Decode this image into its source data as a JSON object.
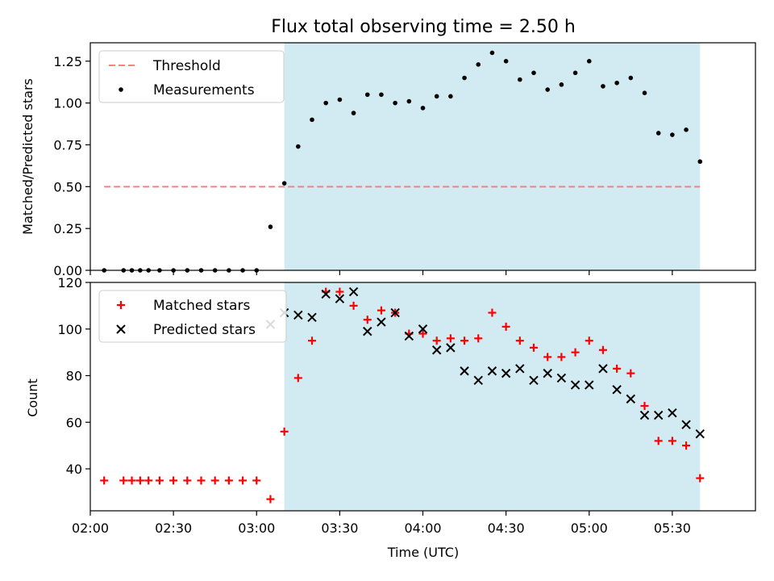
{
  "chart_data": [
    {
      "type": "scatter",
      "title": "Flux total observing time = 2.50 h",
      "xlabel": "",
      "ylabel": "Matched/Predicted stars",
      "xlim": [
        "02:00",
        "06:00"
      ],
      "ylim": [
        0,
        1.36
      ],
      "yticks": [
        "0.00",
        "0.25",
        "0.50",
        "0.75",
        "1.00",
        "1.25"
      ],
      "legend_placement": "upper-left",
      "shaded_region": {
        "start": "03:10",
        "end": "05:40",
        "color": "#add8e6"
      },
      "threshold": {
        "name": "Threshold",
        "value": 0.5,
        "start": "02:05",
        "end": "05:40",
        "color": "#ff7f7f"
      },
      "series": [
        {
          "name": "Measurements",
          "color": "#000000",
          "marker": "dot",
          "points": [
            [
              "02:05",
              0.0
            ],
            [
              "02:12",
              0.0
            ],
            [
              "02:15",
              0.0
            ],
            [
              "02:18",
              0.0
            ],
            [
              "02:21",
              0.0
            ],
            [
              "02:25",
              0.0
            ],
            [
              "02:30",
              0.0
            ],
            [
              "02:35",
              0.0
            ],
            [
              "02:40",
              0.0
            ],
            [
              "02:45",
              0.0
            ],
            [
              "02:50",
              0.0
            ],
            [
              "02:55",
              0.0
            ],
            [
              "03:00",
              0.0
            ],
            [
              "03:05",
              0.26
            ],
            [
              "03:10",
              0.52
            ],
            [
              "03:15",
              0.74
            ],
            [
              "03:20",
              0.9
            ],
            [
              "03:25",
              1.0
            ],
            [
              "03:30",
              1.02
            ],
            [
              "03:35",
              0.94
            ],
            [
              "03:40",
              1.05
            ],
            [
              "03:45",
              1.05
            ],
            [
              "03:50",
              1.0
            ],
            [
              "03:55",
              1.01
            ],
            [
              "04:00",
              0.97
            ],
            [
              "04:05",
              1.04
            ],
            [
              "04:10",
              1.04
            ],
            [
              "04:15",
              1.15
            ],
            [
              "04:20",
              1.23
            ],
            [
              "04:25",
              1.3
            ],
            [
              "04:30",
              1.25
            ],
            [
              "04:35",
              1.14
            ],
            [
              "04:40",
              1.18
            ],
            [
              "04:45",
              1.08
            ],
            [
              "04:50",
              1.11
            ],
            [
              "04:55",
              1.18
            ],
            [
              "05:00",
              1.25
            ],
            [
              "05:05",
              1.1
            ],
            [
              "05:10",
              1.12
            ],
            [
              "05:15",
              1.15
            ],
            [
              "05:20",
              1.06
            ],
            [
              "05:25",
              0.82
            ],
            [
              "05:30",
              0.81
            ],
            [
              "05:35",
              0.84
            ],
            [
              "05:40",
              0.65
            ]
          ]
        }
      ]
    },
    {
      "type": "scatter",
      "title": "",
      "xlabel": "Time (UTC)",
      "ylabel": "Count",
      "xlim": [
        "02:00",
        "06:00"
      ],
      "ylim": [
        22,
        120
      ],
      "xticks": [
        "02:00",
        "02:30",
        "03:00",
        "03:30",
        "04:00",
        "04:30",
        "05:00",
        "05:30"
      ],
      "yticks": [
        "40",
        "60",
        "80",
        "100",
        "120"
      ],
      "legend_placement": "upper-left",
      "shaded_region": {
        "start": "03:10",
        "end": "05:40",
        "color": "#add8e6"
      },
      "series": [
        {
          "name": "Matched stars",
          "color": "#ff0000",
          "marker": "plus",
          "points": [
            [
              "02:05",
              35
            ],
            [
              "02:12",
              35
            ],
            [
              "02:15",
              35
            ],
            [
              "02:18",
              35
            ],
            [
              "02:21",
              35
            ],
            [
              "02:25",
              35
            ],
            [
              "02:30",
              35
            ],
            [
              "02:35",
              35
            ],
            [
              "02:40",
              35
            ],
            [
              "02:45",
              35
            ],
            [
              "02:50",
              35
            ],
            [
              "02:55",
              35
            ],
            [
              "03:00",
              35
            ],
            [
              "03:05",
              27
            ],
            [
              "03:10",
              56
            ],
            [
              "03:15",
              79
            ],
            [
              "03:20",
              95
            ],
            [
              "03:25",
              116
            ],
            [
              "03:30",
              116
            ],
            [
              "03:35",
              110
            ],
            [
              "03:40",
              104
            ],
            [
              "03:45",
              108
            ],
            [
              "03:50",
              107
            ],
            [
              "03:55",
              98
            ],
            [
              "04:00",
              98
            ],
            [
              "04:05",
              95
            ],
            [
              "04:10",
              96
            ],
            [
              "04:15",
              95
            ],
            [
              "04:20",
              96
            ],
            [
              "04:25",
              107
            ],
            [
              "04:30",
              101
            ],
            [
              "04:35",
              95
            ],
            [
              "04:40",
              92
            ],
            [
              "04:45",
              88
            ],
            [
              "04:50",
              88
            ],
            [
              "04:55",
              90
            ],
            [
              "05:00",
              95
            ],
            [
              "05:05",
              91
            ],
            [
              "05:10",
              83
            ],
            [
              "05:15",
              81
            ],
            [
              "05:20",
              67
            ],
            [
              "05:25",
              52
            ],
            [
              "05:30",
              52
            ],
            [
              "05:35",
              50
            ],
            [
              "05:40",
              36
            ]
          ]
        },
        {
          "name": "Predicted stars",
          "color": "#000000",
          "marker": "x",
          "points": [
            [
              "03:05",
              102
            ],
            [
              "03:10",
              107
            ],
            [
              "03:15",
              106
            ],
            [
              "03:20",
              105
            ],
            [
              "03:25",
              115
            ],
            [
              "03:30",
              113
            ],
            [
              "03:35",
              116
            ],
            [
              "03:40",
              99
            ],
            [
              "03:45",
              103
            ],
            [
              "03:50",
              107
            ],
            [
              "03:55",
              97
            ],
            [
              "04:00",
              100
            ],
            [
              "04:05",
              91
            ],
            [
              "04:10",
              92
            ],
            [
              "04:15",
              82
            ],
            [
              "04:20",
              78
            ],
            [
              "04:25",
              82
            ],
            [
              "04:30",
              81
            ],
            [
              "04:35",
              83
            ],
            [
              "04:40",
              78
            ],
            [
              "04:45",
              81
            ],
            [
              "04:50",
              79
            ],
            [
              "04:55",
              76
            ],
            [
              "05:00",
              76
            ],
            [
              "05:05",
              83
            ],
            [
              "05:10",
              74
            ],
            [
              "05:15",
              70
            ],
            [
              "05:20",
              63
            ],
            [
              "05:25",
              63
            ],
            [
              "05:30",
              64
            ],
            [
              "05:35",
              59
            ],
            [
              "05:40",
              55
            ]
          ]
        }
      ]
    }
  ]
}
